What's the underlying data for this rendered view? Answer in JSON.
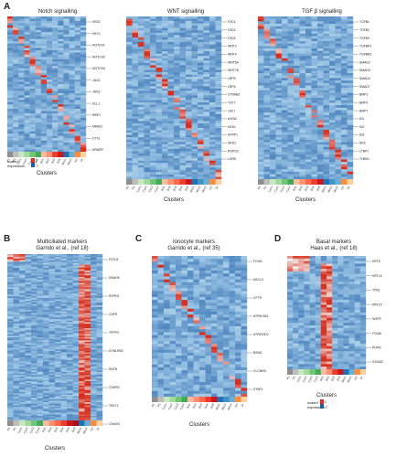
{
  "figure": {
    "colors": {
      "low": "#1f5fa8",
      "mid": "#9cc6e6",
      "high": "#d7301f",
      "white": "#f4f4f4"
    }
  },
  "panels": [
    {
      "id": "A1",
      "letter": "A",
      "title": "Notch signalling",
      "subtitle": "",
      "clusters_label": "Clusters",
      "rows": 60,
      "cols": 14,
      "pattern": "diag",
      "genes": [
        "HES1",
        "HEY1",
        "NOTCH1",
        "NOTCH2",
        "NOTCH3",
        "JAG1",
        "JAG2",
        "DLL1",
        "RBPJ",
        "MAML1",
        "DTX1",
        "NRARP"
      ],
      "xticks": [
        "P1",
        "P2",
        "Cyc1",
        "Cyc2",
        "Cyc3",
        "Cyc4",
        "Bs1",
        "Bs2",
        "Bs3",
        "Bs4",
        "Mcc1",
        "Mcc2",
        "Ion",
        "Gr"
      ],
      "strip": [
        "#8f8f8f",
        "#bdbdbd",
        "#c7e9c0",
        "#a1d99b",
        "#74c476",
        "#41ab5d",
        "#fcbba1",
        "#fc9272",
        "#ef3b2c",
        "#cb181d",
        "#2171b5",
        "#6baed6",
        "#fd8d3c",
        "#fdd0a2"
      ],
      "legend": {
        "title": "scaled expression",
        "max": "2",
        "min": "-2"
      }
    },
    {
      "id": "A2",
      "letter": "",
      "title": "WNT signalling",
      "subtitle": "",
      "clusters_label": "Clusters",
      "rows": 70,
      "cols": 16,
      "pattern": "diag",
      "genes": [
        "FZD1",
        "FZD2",
        "FZD3",
        "WNT2",
        "WNT4",
        "WNT5A",
        "WNT7B",
        "LRP5",
        "LRP6",
        "CTNNB1",
        "TCF7",
        "LEF1",
        "AXIN2",
        "DKK1",
        "SFRP1",
        "NKD1",
        "RSPO3",
        "LGR5"
      ],
      "xticks": [
        "P1",
        "P2",
        "Cyc1",
        "Cyc2",
        "Cyc3",
        "Cyc4",
        "Bs1",
        "Bs2",
        "Bs3",
        "Bs4",
        "Bs5",
        "Mcc1",
        "Mcc2",
        "Mcc3",
        "Ion",
        "Gr"
      ],
      "strip": [
        "#8f8f8f",
        "#bdbdbd",
        "#c7e9c0",
        "#a1d99b",
        "#74c476",
        "#41ab5d",
        "#fcbba1",
        "#fc9272",
        "#fb6a4a",
        "#ef3b2c",
        "#cb181d",
        "#2171b5",
        "#4292c6",
        "#6baed6",
        "#fd8d3c",
        "#fdd0a2"
      ],
      "legend": null
    },
    {
      "id": "A3",
      "letter": "",
      "title": "TGF β signalling",
      "subtitle": "",
      "clusters_label": "Clusters",
      "rows": 66,
      "cols": 16,
      "pattern": "diag",
      "genes": [
        "TGFB1",
        "TGFB2",
        "TGFB3",
        "TGFBR1",
        "TGFBR2",
        "SMAD2",
        "SMAD3",
        "SMAD4",
        "SMAD7",
        "BMP2",
        "BMP4",
        "BMP7",
        "ID1",
        "ID2",
        "ID3",
        "SKIL",
        "LTBP1",
        "THBS1"
      ],
      "xticks": [
        "P1",
        "P2",
        "Cyc1",
        "Cyc2",
        "Cyc3",
        "Cyc4",
        "Bs1",
        "Bs2",
        "Bs3",
        "Bs4",
        "Bs5",
        "Mcc1",
        "Mcc2",
        "Mcc3",
        "Ion",
        "Gr"
      ],
      "strip": [
        "#8f8f8f",
        "#bdbdbd",
        "#c7e9c0",
        "#a1d99b",
        "#74c476",
        "#41ab5d",
        "#fcbba1",
        "#fc9272",
        "#fb6a4a",
        "#ef3b2c",
        "#cb181d",
        "#2171b5",
        "#4292c6",
        "#6baed6",
        "#fd8d3c",
        "#fdd0a2"
      ],
      "legend": null
    },
    {
      "id": "B",
      "letter": "B",
      "title": "Multiciliated markers",
      "subtitle": "Garrido et al., (ref 18)",
      "clusters_label": "Clusters",
      "rows": 110,
      "cols": 16,
      "pattern": "mcc",
      "genes": [
        "FOXJ1",
        "DNAH5",
        "RSPH1",
        "CAPS",
        "TPPP3",
        "DYNLRB2",
        "SNTN",
        "CDHR3",
        "TEKT1",
        "C9orf24"
      ],
      "xticks": [
        "P1",
        "P2",
        "Cyc1",
        "Cyc2",
        "Cyc3",
        "Cyc4",
        "Bs1",
        "Bs2",
        "Bs3",
        "Bs4",
        "Bs5",
        "Bs6",
        "Mcc1",
        "Mcc2",
        "Ion",
        "Gr"
      ],
      "strip": [
        "#8f8f8f",
        "#bdbdbd",
        "#c7e9c0",
        "#a1d99b",
        "#74c476",
        "#41ab5d",
        "#fcbba1",
        "#fc9272",
        "#fb6a4a",
        "#ef3b2c",
        "#cb181d",
        "#a50f15",
        "#2171b5",
        "#6baed6",
        "#fd8d3c",
        "#fdd0a2"
      ],
      "legend": null
    },
    {
      "id": "C",
      "letter": "C",
      "title": "Ionocyte markers",
      "subtitle": "Garrido et al., (ref 35)",
      "clusters_label": "Clusters",
      "rows": 48,
      "cols": 16,
      "pattern": "diag",
      "genes": [
        "FOXI1",
        "ASCL3",
        "CFTR",
        "ATP6V1B1",
        "ATP6V0D2",
        "BSND",
        "CLCNKB",
        "STAP1"
      ],
      "xticks": [
        "P1",
        "P2",
        "Cyc1",
        "Cyc2",
        "Cyc3",
        "Cyc4",
        "Bs1",
        "Bs2",
        "Bs3",
        "Bs4",
        "Bs5",
        "Mcc1",
        "Mcc2",
        "Mcc3",
        "Ion",
        "Gr"
      ],
      "strip": [
        "#8f8f8f",
        "#bdbdbd",
        "#c7e9c0",
        "#a1d99b",
        "#74c476",
        "#41ab5d",
        "#fcbba1",
        "#fc9272",
        "#fb6a4a",
        "#ef3b2c",
        "#cb181d",
        "#2171b5",
        "#4292c6",
        "#6baed6",
        "#fd8d3c",
        "#fdd0a2"
      ],
      "legend": null
    },
    {
      "id": "D",
      "letter": "D",
      "title": "Basal markers",
      "subtitle": "Haas et al., (ref 18)",
      "clusters_label": "Clusters",
      "rows": 44,
      "cols": 14,
      "pattern": "basal",
      "genes": [
        "KRT5",
        "KRT14",
        "TP63",
        "KRT15",
        "NGFR",
        "ITGA6",
        "PDPN",
        "S100A2"
      ],
      "xticks": [
        "P1",
        "P2",
        "Cyc1",
        "Cyc2",
        "Cyc3",
        "Cyc4",
        "Bs1",
        "Bs2",
        "Bs3",
        "Bs4",
        "Mcc1",
        "Mcc2",
        "Ion",
        "Gr"
      ],
      "strip": [
        "#8f8f8f",
        "#bdbdbd",
        "#c7e9c0",
        "#a1d99b",
        "#74c476",
        "#41ab5d",
        "#fcbba1",
        "#fc9272",
        "#ef3b2c",
        "#cb181d",
        "#2171b5",
        "#6baed6",
        "#fd8d3c",
        "#fdd0a2"
      ],
      "legend": {
        "title": "scaled expression",
        "max": "2",
        "min": "-2"
      }
    }
  ]
}
